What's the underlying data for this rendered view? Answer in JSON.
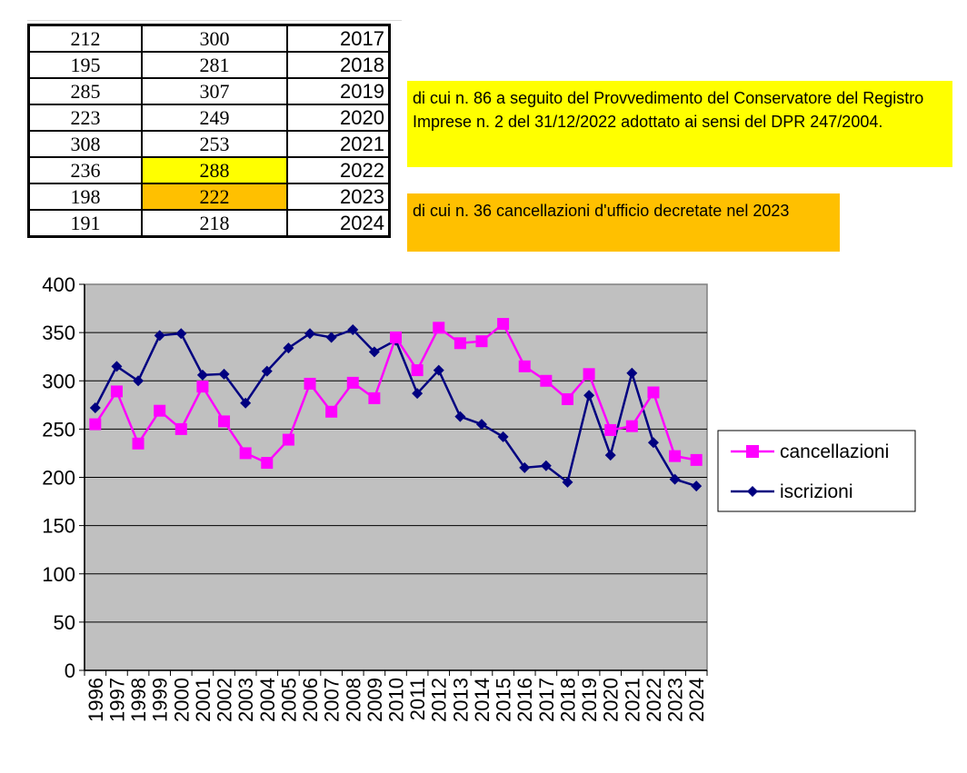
{
  "table": {
    "rows": [
      {
        "a": "212",
        "b": "300",
        "year": "2017"
      },
      {
        "a": "195",
        "b": "281",
        "year": "2018"
      },
      {
        "a": "285",
        "b": "307",
        "year": "2019"
      },
      {
        "a": "223",
        "b": "249",
        "year": "2020"
      },
      {
        "a": "308",
        "b": "253",
        "year": "2021"
      },
      {
        "a": "236",
        "b": "288",
        "year": "2022"
      },
      {
        "a": "198",
        "b": "222",
        "year": "2023"
      },
      {
        "a": "191",
        "b": "218",
        "year": "2024"
      }
    ],
    "highlight_2022": "#ffff00",
    "highlight_2023": "#ffc000"
  },
  "notes": {
    "note_2022": "di cui n. 86 a seguito del Provvedimento del Conservatore del Registro Imprese n. 2 del 31/12/2022 adottato ai sensi del DPR 247/2004.",
    "note_2023": "di cui n. 36 cancellazioni d'ufficio decretate nel 2023"
  },
  "chart_data": {
    "type": "line",
    "title": "",
    "xlabel": "",
    "ylabel": "",
    "ylim": [
      0,
      400
    ],
    "yticks": [
      0,
      50,
      100,
      150,
      200,
      250,
      300,
      350,
      400
    ],
    "grid": true,
    "legend_position": "right",
    "plot_background": "#c0c0c0",
    "x": [
      "1996",
      "1997",
      "1998",
      "1999",
      "2000",
      "2001",
      "2002",
      "2003",
      "2004",
      "2005",
      "2006",
      "2007",
      "2008",
      "2009",
      "2010",
      "2011",
      "2012",
      "2013",
      "2014",
      "2015",
      "2016",
      "2017",
      "2018",
      "2019",
      "2020",
      "2021",
      "2022",
      "2023",
      "2024"
    ],
    "series": [
      {
        "name": "cancellazioni",
        "color": "#ff00ff",
        "marker": "square",
        "values": [
          255,
          289,
          235,
          269,
          250,
          294,
          258,
          225,
          215,
          239,
          297,
          268,
          298,
          282,
          345,
          311,
          355,
          339,
          341,
          359,
          315,
          300,
          281,
          307,
          249,
          253,
          288,
          222,
          218
        ]
      },
      {
        "name": "iscrizioni",
        "color": "#000080",
        "marker": "diamond",
        "values": [
          272,
          315,
          300,
          347,
          349,
          306,
          307,
          277,
          310,
          334,
          349,
          345,
          353,
          330,
          342,
          287,
          311,
          263,
          255,
          242,
          210,
          212,
          195,
          285,
          223,
          308,
          236,
          198,
          191
        ]
      }
    ]
  }
}
